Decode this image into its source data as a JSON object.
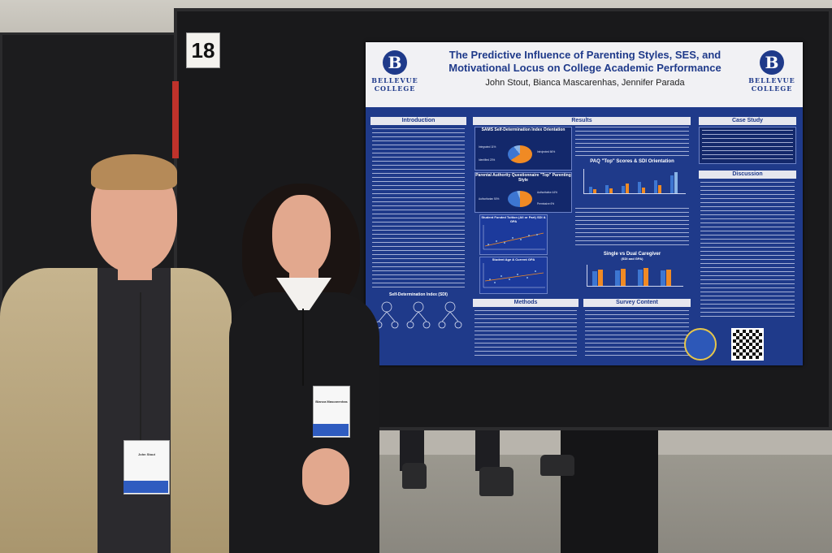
{
  "booth_number": "18",
  "poster": {
    "logo_letter": "B",
    "logo_left_lines": [
      "BELLEVUE",
      "COLLEGE"
    ],
    "logo_right_lines": [
      "BELLEVUE",
      "COLLEGE"
    ],
    "title": "The Predictive Influence of Parenting Styles, SES, and Motivational Locus on College Academic Performance",
    "authors": "John Stout, Bianca Mascarenhas, Jennifer Parada",
    "sections": {
      "introduction": "Introduction",
      "results": "Results",
      "case_study": "Case Study",
      "discussion": "Discussion",
      "methods": "Methods",
      "survey_content": "Survey Content",
      "sdi_diagram": "Self-Determination Index (SDI)"
    },
    "charts": {
      "sams_orientation": "SAMS Self-Determination Index Orientation",
      "paq_top": "Parental Authority Questionnaire \"Top\" Parenting Style",
      "paq_sdi": "PAQ \"Top\" Scores & SDI Orientation",
      "single_dual": "Single vs Dual Caregiver",
      "single_dual_sub": "(SDI and GPA)",
      "tuition": "Student Funded Tuition (All or Part) SDI & GPA",
      "age_gpa": "Student Age & Current GPA"
    },
    "pie_labels": {
      "integrated": "Integrated 11%",
      "introjected": "Introjected 66%",
      "identified": "Identified 23%",
      "authoritarian": "Authoritarian 50%",
      "authoritative": "Authoritative 44%",
      "permissive": "Permissive 6%"
    }
  },
  "badges": {
    "man_name": "John Stout",
    "woman_name": "Bianca Mascarenhas"
  }
}
